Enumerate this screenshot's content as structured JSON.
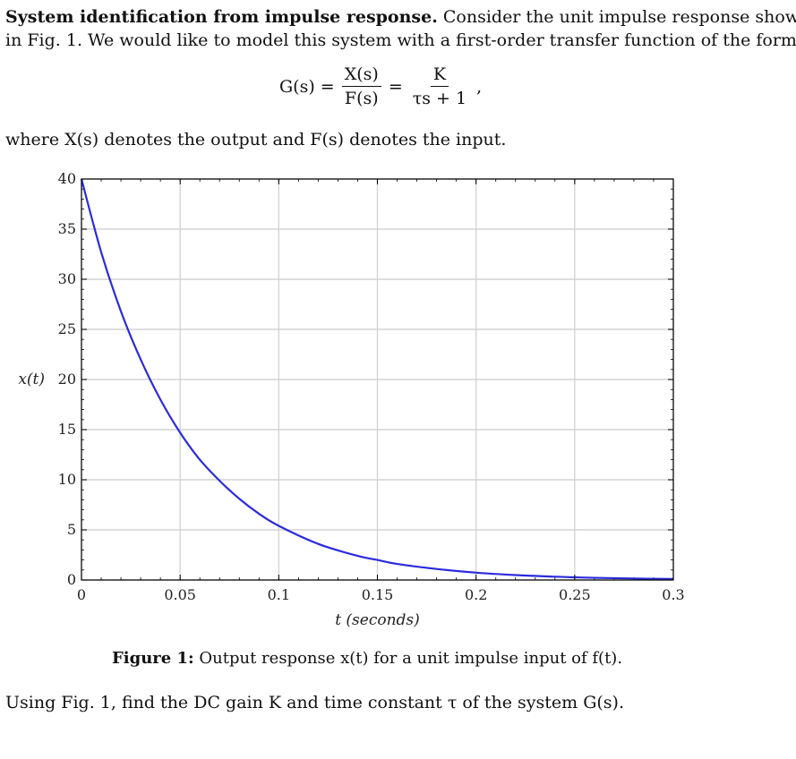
{
  "problem": {
    "title": "System identification from impulse response.",
    "intro_line1": "Consider the unit impulse response shown",
    "intro_line2": "in Fig. 1. We would like to model this system with a first-order transfer function of the form",
    "equation": {
      "lhs": "G(s) =",
      "frac1_num": "X(s)",
      "frac1_den": "F(s)",
      "equals": "=",
      "frac2_num": "K",
      "frac2_den": "τs + 1",
      "trail": ","
    },
    "where_text": "where X(s) denotes the output and F(s) denotes the input."
  },
  "figure": {
    "label": "Figure 1:",
    "caption": "Output response x(t) for a unit impulse input of f(t)."
  },
  "question": "Using Fig. 1, find the DC gain K and time constant τ of the system G(s).",
  "chart_data": {
    "type": "line",
    "title": "",
    "xlabel": "t (seconds)",
    "ylabel": "x(t)",
    "xlim": [
      0,
      0.3
    ],
    "ylim": [
      0,
      40
    ],
    "x_ticks": [
      0,
      0.05,
      0.1,
      0.15,
      0.2,
      0.25,
      0.3
    ],
    "x_tick_labels": [
      "0",
      "0.05",
      "0.1",
      "0.15",
      "0.2",
      "0.25",
      "0.3"
    ],
    "y_ticks": [
      0,
      5,
      10,
      15,
      20,
      25,
      30,
      35,
      40
    ],
    "y_tick_labels": [
      "0",
      "5",
      "10",
      "15",
      "20",
      "25",
      "30",
      "35",
      "40"
    ],
    "grid": true,
    "series": [
      {
        "color": "#2b2bdc",
        "x": [
          0,
          0.01,
          0.02,
          0.03,
          0.04,
          0.05,
          0.06,
          0.07,
          0.08,
          0.09,
          0.1,
          0.12,
          0.14,
          0.15,
          0.16,
          0.18,
          0.2,
          0.22,
          0.24,
          0.25,
          0.26,
          0.28,
          0.3
        ],
        "values": [
          40,
          32.7,
          26.8,
          22.0,
          18.0,
          14.7,
          12.0,
          9.9,
          8.1,
          6.6,
          5.4,
          3.6,
          2.4,
          2.0,
          1.6,
          1.1,
          0.73,
          0.49,
          0.33,
          0.27,
          0.22,
          0.15,
          0.1
        ]
      }
    ]
  }
}
